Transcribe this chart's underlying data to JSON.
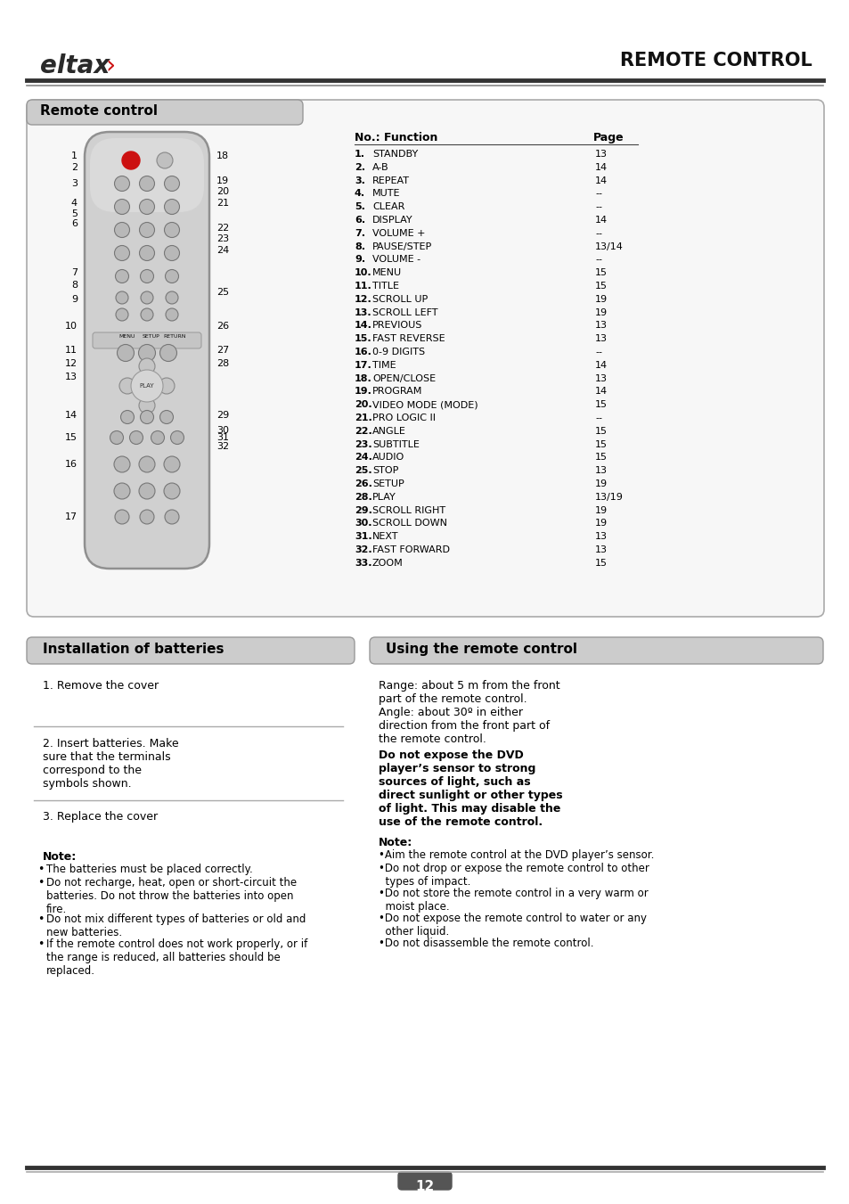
{
  "title": "REMOTE CONTROL",
  "brand_text": "eltax",
  "brand_arrow": "›",
  "page_number": "12",
  "bg_color": "#ffffff",
  "functions": [
    [
      "1.",
      "STANDBY",
      "13"
    ],
    [
      "2.",
      "A-B",
      "14"
    ],
    [
      "3.",
      "REPEAT",
      "14"
    ],
    [
      "4.",
      "MUTE",
      "--"
    ],
    [
      "5.",
      "CLEAR",
      "--"
    ],
    [
      "6.",
      "DISPLAY",
      "14"
    ],
    [
      "7.",
      "VOLUME +",
      "--"
    ],
    [
      "8.",
      "PAUSE/STEP",
      "13/14"
    ],
    [
      "9.",
      "VOLUME -",
      "--"
    ],
    [
      "10.",
      "MENU",
      "15"
    ],
    [
      "11.",
      "TITLE",
      "15"
    ],
    [
      "12.",
      "SCROLL UP",
      "19"
    ],
    [
      "13.",
      "SCROLL LEFT",
      "19"
    ],
    [
      "14.",
      "PREVIOUS",
      "13"
    ],
    [
      "15.",
      "FAST REVERSE",
      "13"
    ],
    [
      "16.",
      "0-9 DIGITS",
      "--"
    ],
    [
      "17.",
      "TIME",
      "14"
    ],
    [
      "18.",
      "OPEN/CLOSE",
      "13"
    ],
    [
      "19.",
      "PROGRAM",
      "14"
    ],
    [
      "20.",
      "VIDEO MODE (MODE)",
      "15"
    ],
    [
      "21.",
      "PRO LOGIC II",
      "--"
    ],
    [
      "22.",
      "ANGLE",
      "15"
    ],
    [
      "23.",
      "SUBTITLE",
      "15"
    ],
    [
      "24.",
      "AUDIO",
      "15"
    ],
    [
      "25.",
      "STOP",
      "13"
    ],
    [
      "26.",
      "SETUP",
      "19"
    ],
    [
      "28.",
      "PLAY",
      "13/19"
    ],
    [
      "29.",
      "SCROLL RIGHT",
      "19"
    ],
    [
      "30.",
      "SCROLL DOWN",
      "19"
    ],
    [
      "31.",
      "NEXT",
      "13"
    ],
    [
      "32.",
      "FAST FORWARD",
      "13"
    ],
    [
      "33.",
      "ZOOM",
      "15"
    ]
  ],
  "installation_section_title": "Installation of batteries",
  "using_section_title": "Using the remote control",
  "remote_control_section_title": "Remote control",
  "installation_note_title": "Note:",
  "installation_notes": [
    "The batteries must be placed correctly.",
    "Do not recharge, heat, open or short-circuit the\nbatteries. Do not throw the batteries into open\nfire.",
    "Do not mix different types of batteries or old and\nnew batteries.",
    "If the remote control does not work properly, or if\nthe range is reduced, all batteries should be\nreplaced."
  ],
  "using_range_text": "Range: about 5 m from the front\npart of the remote control.\nAngle: about 30º in either\ndirection from the front part of\nthe remote control.",
  "using_warning_text": "Do not expose the DVD\nplayer’s sensor to strong\nsources of light, such as\ndirect sunlight or other types\nof light. This may disable the\nuse of the remote control.",
  "using_note_title": "Note:",
  "using_notes": [
    "•Aim the remote control at the DVD player’s sensor.",
    "•Do not drop or expose the remote control to other\n  types of impact.",
    "•Do not store the remote control in a very warm or\n  moist place.",
    "•Do not expose the remote control to water or any\n  other liquid.",
    "•Do not disassemble the remote control."
  ]
}
